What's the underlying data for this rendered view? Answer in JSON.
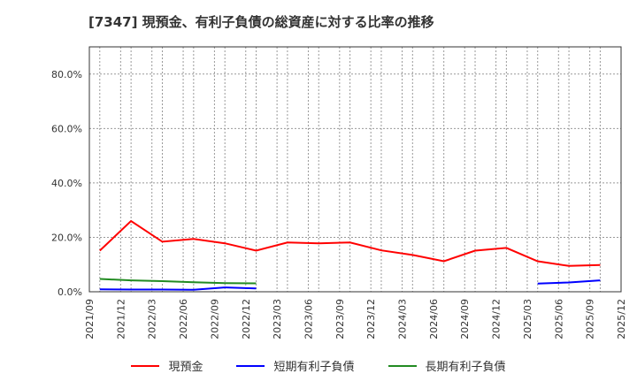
{
  "title": "[7347]  現預金、有利子負債の総資産に対する比率の推移",
  "legend": [
    {
      "label": "現預金",
      "color": "#ff0000"
    },
    {
      "label": "短期有利子負債",
      "color": "#0000ff"
    },
    {
      "label": "長期有利子負債",
      "color": "#228b22"
    }
  ],
  "chart_data": {
    "type": "line",
    "title": "[7347]  現預金、有利子負債の総資産に対する比率の推移",
    "xlabel": "",
    "ylabel": "",
    "ylim": [
      0,
      90
    ],
    "y_ticks": [
      "0.0%",
      "20.0%",
      "40.0%",
      "60.0%",
      "80.0%"
    ],
    "x_ticks": [
      "2021/09",
      "2021/12",
      "2022/03",
      "2022/06",
      "2022/09",
      "2022/12",
      "2023/03",
      "2023/06",
      "2023/09",
      "2023/12",
      "2024/03",
      "2024/06",
      "2024/09",
      "2024/12",
      "2025/03",
      "2025/06",
      "2025/09",
      "2025/12"
    ],
    "grid": true,
    "legend_position": "bottom",
    "x": [
      "2021/10",
      "2022/01",
      "2022/04",
      "2022/07",
      "2022/10",
      "2023/01",
      "2023/04",
      "2023/07",
      "2023/10",
      "2024/01",
      "2024/04",
      "2024/07",
      "2024/10",
      "2025/01",
      "2025/04",
      "2025/07",
      "2025/10"
    ],
    "series": [
      {
        "name": "現預金",
        "color": "#ff0000",
        "values": [
          15.1,
          26.0,
          18.4,
          19.4,
          17.8,
          15.1,
          18.1,
          17.8,
          18.1,
          15.2,
          13.5,
          11.2,
          15.1,
          16.1,
          11.2,
          9.5,
          9.8
        ]
      },
      {
        "name": "短期有利子負債",
        "color": "#0000ff",
        "values": [
          0.9,
          0.8,
          0.8,
          0.7,
          1.6,
          1.2,
          null,
          null,
          null,
          null,
          null,
          null,
          null,
          null,
          3.0,
          3.4,
          4.2
        ]
      },
      {
        "name": "長期有利子負債",
        "color": "#228b22",
        "values": [
          4.7,
          4.2,
          3.9,
          3.5,
          3.2,
          3.1,
          null,
          null,
          null,
          null,
          null,
          null,
          null,
          null,
          null,
          null,
          null
        ]
      }
    ]
  }
}
